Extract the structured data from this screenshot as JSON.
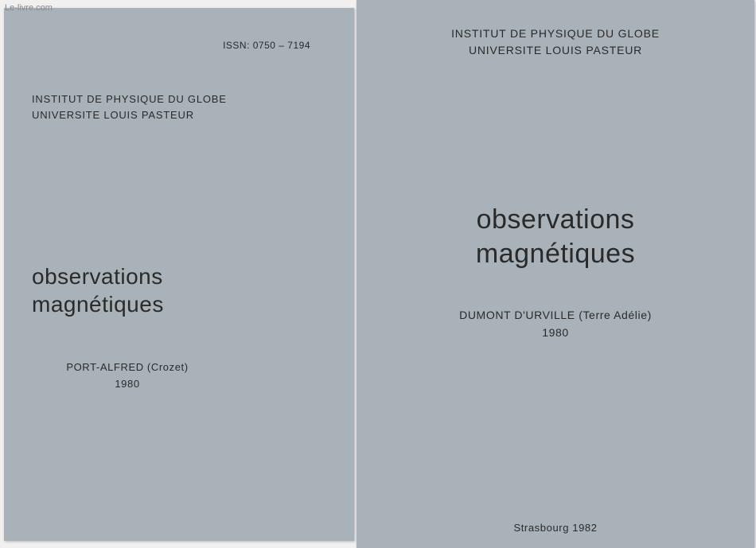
{
  "watermark": "Le-livre.com",
  "left": {
    "issn": "ISSN: 0750 – 7194",
    "institution_line1": "INSTITUT DE PHYSIQUE DU GLOBE",
    "institution_line2": "UNIVERSITE LOUIS PASTEUR",
    "title_line1": "observations",
    "title_line2": "magnétiques",
    "location": "PORT-ALFRED (Crozet)",
    "year": "1980"
  },
  "right": {
    "institution_line1": "INSTITUT DE PHYSIQUE DU GLOBE",
    "institution_line2": "UNIVERSITE LOUIS PASTEUR",
    "title_line1": "observations",
    "title_line2": "magnétiques",
    "location": "DUMONT D'URVILLE (Terre Adélie)",
    "year": "1980",
    "footer": "Strasbourg 1982"
  },
  "colors": {
    "page_bg": "#a8b2b8",
    "text": "#2a2a2a",
    "watermark": "#888888"
  }
}
